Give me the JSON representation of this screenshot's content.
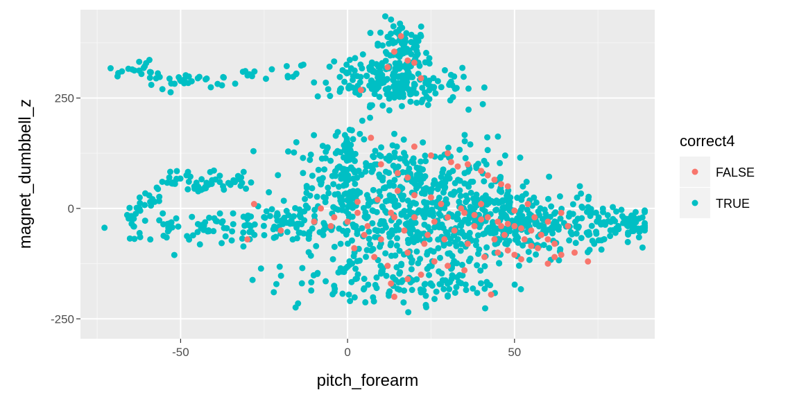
{
  "chart_data": {
    "type": "scatter",
    "title": "",
    "xlabel": "pitch_forearm",
    "ylabel": "magnet_dumbbell_z",
    "xlim": [
      -80,
      92
    ],
    "ylim": [
      -295,
      450
    ],
    "x_ticks": [
      -50,
      0,
      50
    ],
    "y_ticks": [
      -250,
      0,
      250
    ],
    "x_tick_labels": [
      "-50",
      "0",
      "50"
    ],
    "y_tick_labels": [
      "-250",
      "0",
      "250"
    ],
    "grid": true,
    "legend": {
      "title": "correct4",
      "position": "right"
    },
    "colors": {
      "panel": "#EBEBEB",
      "grid_major": "#FFFFFF",
      "grid_minor": "#F5F5F5",
      "tick_text": "#4D4D4D"
    },
    "series": [
      {
        "name": "FALSE",
        "color": "#F8766D",
        "points": [
          [
            16,
            390
          ],
          [
            14,
            355
          ],
          [
            18,
            335
          ],
          [
            12,
            320
          ],
          [
            20,
            330
          ],
          [
            22,
            295
          ],
          [
            4,
            268
          ],
          [
            7,
            160
          ],
          [
            3,
            15
          ],
          [
            10,
            100
          ],
          [
            15,
            80
          ],
          [
            18,
            70
          ],
          [
            20,
            140
          ],
          [
            25,
            120
          ],
          [
            30,
            125
          ],
          [
            31,
            105
          ],
          [
            33,
            95
          ],
          [
            36,
            100
          ],
          [
            40,
            85
          ],
          [
            42,
            75
          ],
          [
            44,
            65
          ],
          [
            46,
            55
          ],
          [
            48,
            50
          ],
          [
            15,
            40
          ],
          [
            20,
            30
          ],
          [
            25,
            25
          ],
          [
            28,
            10
          ],
          [
            30,
            -20
          ],
          [
            35,
            -10
          ],
          [
            38,
            -15
          ],
          [
            40,
            -25
          ],
          [
            42,
            -20
          ],
          [
            45,
            -30
          ],
          [
            48,
            -35
          ],
          [
            50,
            -40
          ],
          [
            52,
            -45
          ],
          [
            55,
            -50
          ],
          [
            58,
            -60
          ],
          [
            60,
            -70
          ],
          [
            62,
            -80
          ],
          [
            57,
            -90
          ],
          [
            55,
            -85
          ],
          [
            41,
            -110
          ],
          [
            45,
            -100
          ],
          [
            48,
            -95
          ],
          [
            50,
            -105
          ],
          [
            52,
            -115
          ],
          [
            60,
            -125
          ],
          [
            62,
            -110
          ],
          [
            64,
            -105
          ],
          [
            68,
            -100
          ],
          [
            72,
            -120
          ],
          [
            43,
            -195
          ],
          [
            14,
            -200
          ],
          [
            13,
            -170
          ],
          [
            18,
            -160
          ],
          [
            -5,
            -40
          ],
          [
            -10,
            -30
          ],
          [
            -28,
            10
          ],
          [
            -30,
            -70
          ],
          [
            -20,
            -50
          ],
          [
            5,
            -60
          ],
          [
            10,
            -70
          ],
          [
            30,
            -130
          ],
          [
            35,
            -140
          ],
          [
            22,
            -150
          ],
          [
            26,
            -120
          ],
          [
            18,
            -100
          ],
          [
            8,
            -110
          ],
          [
            12,
            -130
          ],
          [
            2,
            -90
          ],
          [
            20,
            -20
          ],
          [
            24,
            -60
          ],
          [
            32,
            -50
          ],
          [
            36,
            -80
          ],
          [
            44,
            -70
          ],
          [
            46,
            -40
          ],
          [
            38,
            -40
          ],
          [
            56,
            -20
          ],
          [
            60,
            -30
          ],
          [
            64,
            -10
          ],
          [
            66,
            -40
          ],
          [
            54,
            10
          ],
          [
            50,
            -5
          ],
          [
            40,
            10
          ],
          [
            34,
            0
          ],
          [
            26,
            -30
          ],
          [
            14,
            -20
          ],
          [
            6,
            -40
          ],
          [
            0,
            -30
          ],
          [
            -4,
            -20
          ],
          [
            -8,
            0
          ],
          [
            3,
            -10
          ],
          [
            9,
            20
          ],
          [
            13,
            -10
          ],
          [
            17,
            -50
          ],
          [
            23,
            -80
          ],
          [
            29,
            -70
          ],
          [
            47,
            -60
          ],
          [
            53,
            -70
          ]
        ]
      },
      {
        "name": "TRUE",
        "color": "#00BFC4",
        "clusters": [
          {
            "type": "path",
            "n": 60,
            "jitter": 5,
            "path": [
              [
                -73,
                320
              ],
              [
                -70,
                315
              ],
              [
                -66,
                312
              ],
              [
                -63,
                318
              ],
              [
                -60,
                320
              ],
              [
                -57,
                295
              ],
              [
                -55,
                270
              ],
              [
                -52,
                285
              ],
              [
                -48,
                293
              ],
              [
                -44,
                296
              ],
              [
                -40,
                292
              ],
              [
                -35,
                298
              ],
              [
                -28,
                303
              ],
              [
                -22,
                308
              ],
              [
                -17,
                307
              ],
              [
                -12,
                318
              ]
            ]
          },
          {
            "type": "blob",
            "n": 90,
            "cx": 16,
            "cy": 360,
            "sx": 4,
            "sy": 35
          },
          {
            "type": "blob",
            "n": 150,
            "cx": 16,
            "cy": 280,
            "sx": 9,
            "sy": 22
          },
          {
            "type": "blob",
            "n": 40,
            "cx": 3,
            "cy": 300,
            "sx": 6,
            "sy": 25
          },
          {
            "type": "path",
            "n": 40,
            "jitter": 3,
            "path": [
              [
                0,
                180
              ],
              [
                0,
                130
              ],
              [
                0,
                80
              ],
              [
                0,
                30
              ],
              [
                0,
                -10
              ]
            ]
          },
          {
            "type": "path",
            "n": 80,
            "jitter": 5,
            "path": [
              [
                -65,
                -10
              ],
              [
                -65,
                -60
              ],
              [
                -64,
                0
              ],
              [
                -60,
                5
              ],
              [
                -58,
                30
              ],
              [
                -54,
                55
              ],
              [
                -50,
                70
              ],
              [
                -46,
                60
              ],
              [
                -42,
                55
              ],
              [
                -38,
                60
              ],
              [
                -34,
                65
              ],
              [
                -32,
                55
              ]
            ]
          },
          {
            "type": "blob",
            "n": 60,
            "cx": -45,
            "cy": -45,
            "sx": 12,
            "sy": 15
          },
          {
            "type": "blob",
            "n": 70,
            "cx": -18,
            "cy": -40,
            "sx": 12,
            "sy": 25
          },
          {
            "type": "blob",
            "n": 140,
            "cx": -2,
            "cy": 70,
            "sx": 10,
            "sy": 55
          },
          {
            "type": "blob",
            "n": 150,
            "cx": 25,
            "cy": 70,
            "sx": 12,
            "sy": 45
          },
          {
            "type": "blob",
            "n": 320,
            "cx": 25,
            "cy": -40,
            "sx": 18,
            "sy": 55
          },
          {
            "type": "blob",
            "n": 200,
            "cx": 50,
            "cy": -30,
            "sx": 12,
            "sy": 35
          },
          {
            "type": "blob",
            "n": 60,
            "cx": 75,
            "cy": -35,
            "sx": 8,
            "sy": 25
          },
          {
            "type": "blob",
            "n": 80,
            "cx": 5,
            "cy": -150,
            "sx": 14,
            "sy": 40
          },
          {
            "type": "blob",
            "n": 60,
            "cx": 25,
            "cy": -170,
            "sx": 12,
            "sy": 30
          },
          {
            "type": "blob",
            "n": 30,
            "cx": 85,
            "cy": -40,
            "sx": 3,
            "sy": 15
          }
        ]
      }
    ]
  }
}
